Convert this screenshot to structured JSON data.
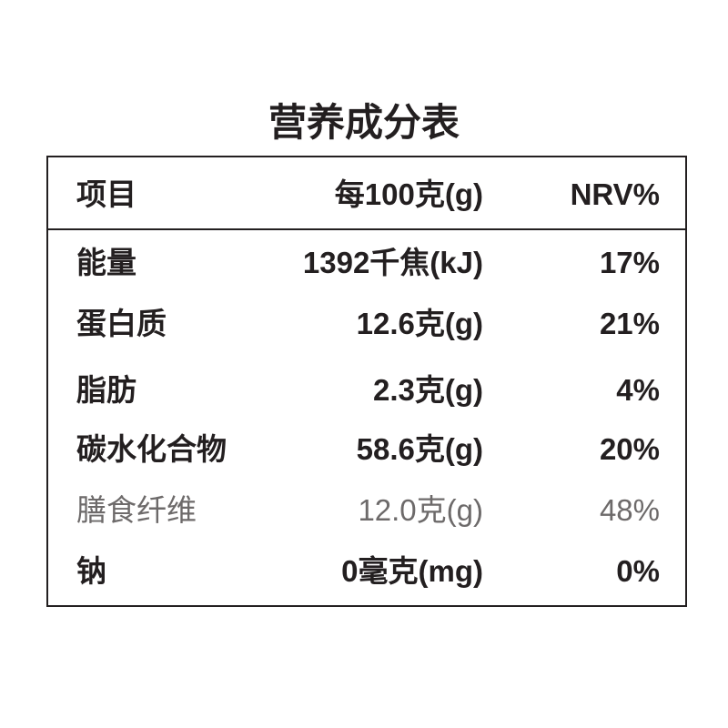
{
  "title": "营养成分表",
  "table": {
    "header": [
      "项目",
      "每100克(g)",
      "NRV%"
    ],
    "rows": [
      [
        "能量",
        "1392千焦(kJ)",
        "17%"
      ],
      [
        "蛋白质",
        "12.6克(g)",
        "21%"
      ],
      [
        "脂肪",
        "2.3克(g)",
        "4%"
      ],
      [
        "碳水化合物",
        "58.6克(g)",
        "20%"
      ],
      [
        "膳食纤维",
        "12.0克(g)",
        "48%"
      ],
      [
        "钠",
        "0毫克(mg)",
        "0%"
      ]
    ]
  }
}
